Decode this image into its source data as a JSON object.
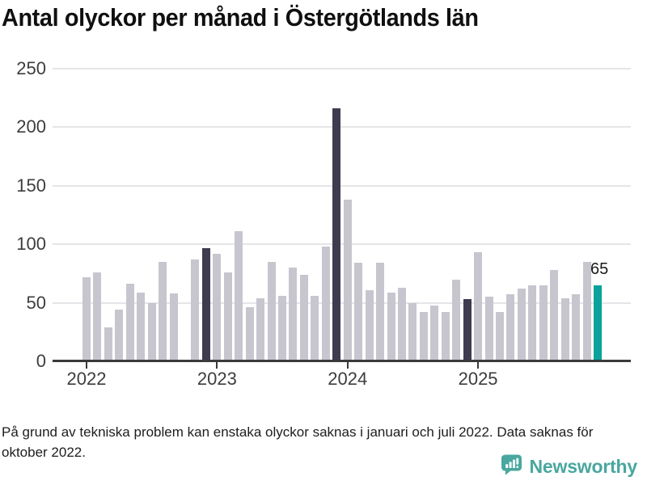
{
  "title": "Antal olyckor per månad i Östergötlands län",
  "footnote": "På grund av tekniska problem kan enstaka olyckor saknas i januari och juli 2022. Data saknas för oktober 2022.",
  "branding": {
    "name": "Newsworthy",
    "icon": "newsworthy-speech-bubble-bar-chart-icon"
  },
  "colors": {
    "bar": "#c7c6cf",
    "bar_december": "#3e3c4f",
    "bar_latest": "#0aa29a",
    "grid": "#e5e4e8",
    "axis": "#3a3a3a",
    "tick_text": "#3d3d3d",
    "logo": "#48a79f"
  },
  "chart_data": {
    "type": "bar",
    "title": "Antal olyckor per månad i Östergötlands län",
    "xlabel": "",
    "ylabel": "",
    "ylim": [
      0,
      250
    ],
    "yticks": [
      0,
      50,
      100,
      150,
      200,
      250
    ],
    "grid": true,
    "legend": "none",
    "year_ticks": [
      {
        "label": "2022",
        "month_index": 0
      },
      {
        "label": "2023",
        "month_index": 12
      },
      {
        "label": "2024",
        "month_index": 24
      },
      {
        "label": "2025",
        "month_index": 36
      }
    ],
    "months": [
      {
        "m": "2022-01",
        "v": 72
      },
      {
        "m": "2022-02",
        "v": 76
      },
      {
        "m": "2022-03",
        "v": 29
      },
      {
        "m": "2022-04",
        "v": 44
      },
      {
        "m": "2022-05",
        "v": 66
      },
      {
        "m": "2022-06",
        "v": 59
      },
      {
        "m": "2022-07",
        "v": 50
      },
      {
        "m": "2022-08",
        "v": 85
      },
      {
        "m": "2022-09",
        "v": 58
      },
      {
        "m": "2022-10",
        "v": null
      },
      {
        "m": "2022-11",
        "v": 87
      },
      {
        "m": "2022-12",
        "v": 97,
        "style": "december"
      },
      {
        "m": "2023-01",
        "v": 92
      },
      {
        "m": "2023-02",
        "v": 76
      },
      {
        "m": "2023-03",
        "v": 111
      },
      {
        "m": "2023-04",
        "v": 46
      },
      {
        "m": "2023-05",
        "v": 54
      },
      {
        "m": "2023-06",
        "v": 85
      },
      {
        "m": "2023-07",
        "v": 56
      },
      {
        "m": "2023-08",
        "v": 80
      },
      {
        "m": "2023-09",
        "v": 74
      },
      {
        "m": "2023-10",
        "v": 56
      },
      {
        "m": "2023-11",
        "v": 98
      },
      {
        "m": "2023-12",
        "v": 216,
        "style": "december"
      },
      {
        "m": "2024-01",
        "v": 138
      },
      {
        "m": "2024-02",
        "v": 84
      },
      {
        "m": "2024-03",
        "v": 61
      },
      {
        "m": "2024-04",
        "v": 84
      },
      {
        "m": "2024-05",
        "v": 59
      },
      {
        "m": "2024-06",
        "v": 63
      },
      {
        "m": "2024-07",
        "v": 50
      },
      {
        "m": "2024-08",
        "v": 42
      },
      {
        "m": "2024-09",
        "v": 48
      },
      {
        "m": "2024-10",
        "v": 42
      },
      {
        "m": "2024-11",
        "v": 70
      },
      {
        "m": "2024-12",
        "v": 53,
        "style": "december"
      },
      {
        "m": "2025-01",
        "v": 93
      },
      {
        "m": "2025-02",
        "v": 55
      },
      {
        "m": "2025-03",
        "v": 42
      },
      {
        "m": "2025-04",
        "v": 57
      },
      {
        "m": "2025-05",
        "v": 62
      },
      {
        "m": "2025-06",
        "v": 65
      },
      {
        "m": "2025-07",
        "v": 65
      },
      {
        "m": "2025-08",
        "v": 78
      },
      {
        "m": "2025-09",
        "v": 54
      },
      {
        "m": "2025-10",
        "v": 57
      },
      {
        "m": "2025-11",
        "v": 85
      },
      {
        "m": "2025-12",
        "v": 65,
        "style": "latest",
        "label": "65"
      }
    ]
  }
}
